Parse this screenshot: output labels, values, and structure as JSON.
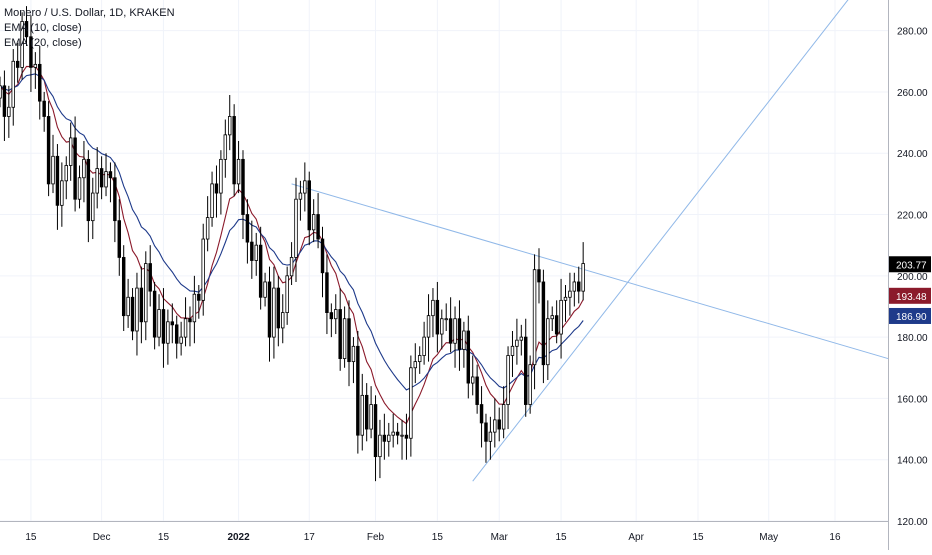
{
  "chart_data": {
    "type": "candlestick",
    "title": "Monero / U.S. Dollar, 1D, KRAKEN",
    "indicators": [
      {
        "name": "EMA (10, close)",
        "color": "#8B1A2B",
        "last": 193.48
      },
      {
        "name": "EMA (20, close)",
        "color": "#1E3A8A",
        "last": 186.9
      }
    ],
    "last_price": 203.77,
    "ylim": [
      120,
      290
    ],
    "y_ticks": [
      120,
      140,
      160,
      180,
      200,
      220,
      240,
      260,
      280
    ],
    "x_ticks": [
      "15",
      "Dec",
      "15",
      "2022",
      "17",
      "Feb",
      "15",
      "Mar",
      "15",
      "Apr",
      "15",
      "May",
      "16"
    ],
    "x_tick_days": [
      -47,
      -31,
      -17,
      0,
      16,
      31,
      45,
      59,
      73,
      90,
      104,
      120,
      135
    ],
    "x_range_days": [
      -54,
      147
    ],
    "price_label_colors": {
      "last": "#000000",
      "ema10": "#8B1A2B",
      "ema20": "#1E3A8A"
    },
    "trendlines": [
      {
        "color": "#90B8E8",
        "from": {
          "day": 12,
          "price": 230
        },
        "to": {
          "day": 147,
          "price": 173
        }
      },
      {
        "color": "#90B8E8",
        "from": {
          "day": 53,
          "price": 133
        },
        "to": {
          "day": 139,
          "price": 292
        }
      }
    ],
    "candles": {
      "start_day": -54,
      "close": [
        262,
        252,
        255,
        270,
        268,
        283,
        278,
        268,
        269,
        257,
        252,
        230,
        239,
        223,
        231,
        236,
        245,
        225,
        232,
        238,
        218,
        227,
        235,
        229,
        234,
        232,
        218,
        206,
        187,
        193,
        182,
        196,
        185,
        204,
        195,
        180,
        189,
        178,
        185,
        184,
        178,
        180,
        186,
        185,
        194,
        192,
        212,
        219,
        230,
        227,
        238,
        246,
        252,
        230,
        238,
        220,
        211,
        205,
        210,
        193,
        198,
        180,
        196,
        183,
        188,
        200,
        206,
        225,
        227,
        231,
        215,
        220,
        212,
        201,
        188,
        186,
        189,
        173,
        186,
        172,
        177,
        148,
        161,
        150,
        158,
        141,
        148,
        146,
        148,
        149,
        148,
        148,
        147,
        170,
        172,
        174,
        180,
        187,
        192,
        181,
        186,
        186,
        178,
        186,
        176,
        182,
        165,
        167,
        158,
        152,
        146,
        149,
        153,
        150,
        158,
        174,
        177,
        179,
        180,
        158,
        171,
        202,
        198,
        171,
        186,
        187,
        181,
        192,
        193,
        195,
        198,
        195,
        204
      ]
    }
  }
}
